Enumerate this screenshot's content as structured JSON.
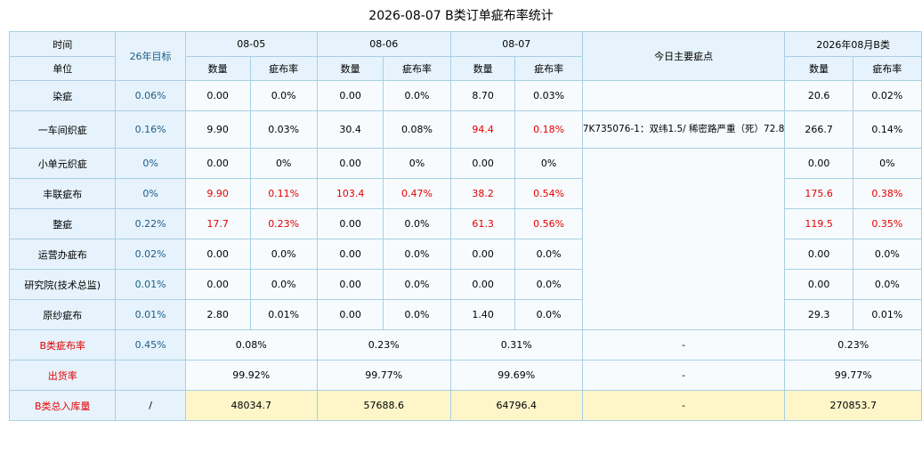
{
  "title": "2026-08-07 B类订单疵布率统计",
  "header": {
    "time_label": "时间",
    "unit_label": "单位",
    "target_label": "26年目标",
    "dates": [
      "08-05",
      "08-06",
      "08-07"
    ],
    "main_defects_label": "今日主要疵点",
    "month_label": "2026年08月B类",
    "qty_label": "数量",
    "rate_label": "疵布率"
  },
  "rows": [
    {
      "label": "染疵",
      "target": "0.06%",
      "cells": [
        [
          "0.00",
          "0.0%",
          false
        ],
        [
          "0.00",
          "0.0%",
          false
        ],
        [
          "8.70",
          "0.03%",
          false
        ]
      ],
      "month": [
        "20.6",
        "0.02%",
        false
      ]
    },
    {
      "label": "一车间织疵",
      "target": "0.16%",
      "cells": [
        [
          "9.90",
          "0.03%",
          false
        ],
        [
          "30.4",
          "0.08%",
          false
        ],
        [
          "94.4",
          "0.18%",
          true
        ]
      ],
      "month": [
        "266.7",
        "0.14%",
        false
      ]
    },
    {
      "label": "小单元织疵",
      "target": "0%",
      "cells": [
        [
          "0.00",
          "0%",
          false
        ],
        [
          "0.00",
          "0%",
          false
        ],
        [
          "0.00",
          "0%",
          false
        ]
      ],
      "month": [
        "0.00",
        "0%",
        false
      ]
    },
    {
      "label": "丰联疵布",
      "target": "0%",
      "cells": [
        [
          "9.90",
          "0.11%",
          true
        ],
        [
          "103.4",
          "0.47%",
          true
        ],
        [
          "38.2",
          "0.54%",
          true
        ]
      ],
      "month": [
        "175.6",
        "0.38%",
        true
      ]
    },
    {
      "label": "整疵",
      "target": "0.22%",
      "cells": [
        [
          "17.7",
          "0.23%",
          true
        ],
        [
          "0.00",
          "0.0%",
          false
        ],
        [
          "61.3",
          "0.56%",
          true
        ]
      ],
      "month": [
        "119.5",
        "0.35%",
        true
      ]
    },
    {
      "label": "运营办疵布",
      "target": "0.02%",
      "cells": [
        [
          "0.00",
          "0.0%",
          false
        ],
        [
          "0.00",
          "0.0%",
          false
        ],
        [
          "0.00",
          "0.0%",
          false
        ]
      ],
      "month": [
        "0.00",
        "0.0%",
        false
      ]
    },
    {
      "label": "研究院(技术总监)",
      "target": "0.01%",
      "cells": [
        [
          "0.00",
          "0.0%",
          false
        ],
        [
          "0.00",
          "0.0%",
          false
        ],
        [
          "0.00",
          "0.0%",
          false
        ]
      ],
      "month": [
        "0.00",
        "0.0%",
        false
      ]
    },
    {
      "label": "原纱疵布",
      "target": "0.01%",
      "cells": [
        [
          "2.80",
          "0.01%",
          false
        ],
        [
          "0.00",
          "0.0%",
          false
        ],
        [
          "1.40",
          "0.0%",
          false
        ]
      ],
      "month": [
        "29.3",
        "0.01%",
        false
      ]
    }
  ],
  "main_defect_text": "7K735076-1：双纬1.5/ 稀密路严重（死）72.8",
  "summary": [
    {
      "label": "B类疵布率",
      "target": "0.45%",
      "days": [
        "0.08%",
        "0.23%",
        "0.31%"
      ],
      "defect": "-",
      "month": "0.23%",
      "yellow": false
    },
    {
      "label": "出货率",
      "target": "",
      "days": [
        "99.92%",
        "99.77%",
        "99.69%"
      ],
      "defect": "-",
      "month": "99.77%",
      "yellow": false
    },
    {
      "label": "B类总入库量",
      "target": "/",
      "days": [
        "48034.7",
        "57688.6",
        "64796.4"
      ],
      "defect": "-",
      "month": "270853.7",
      "yellow": true
    }
  ]
}
